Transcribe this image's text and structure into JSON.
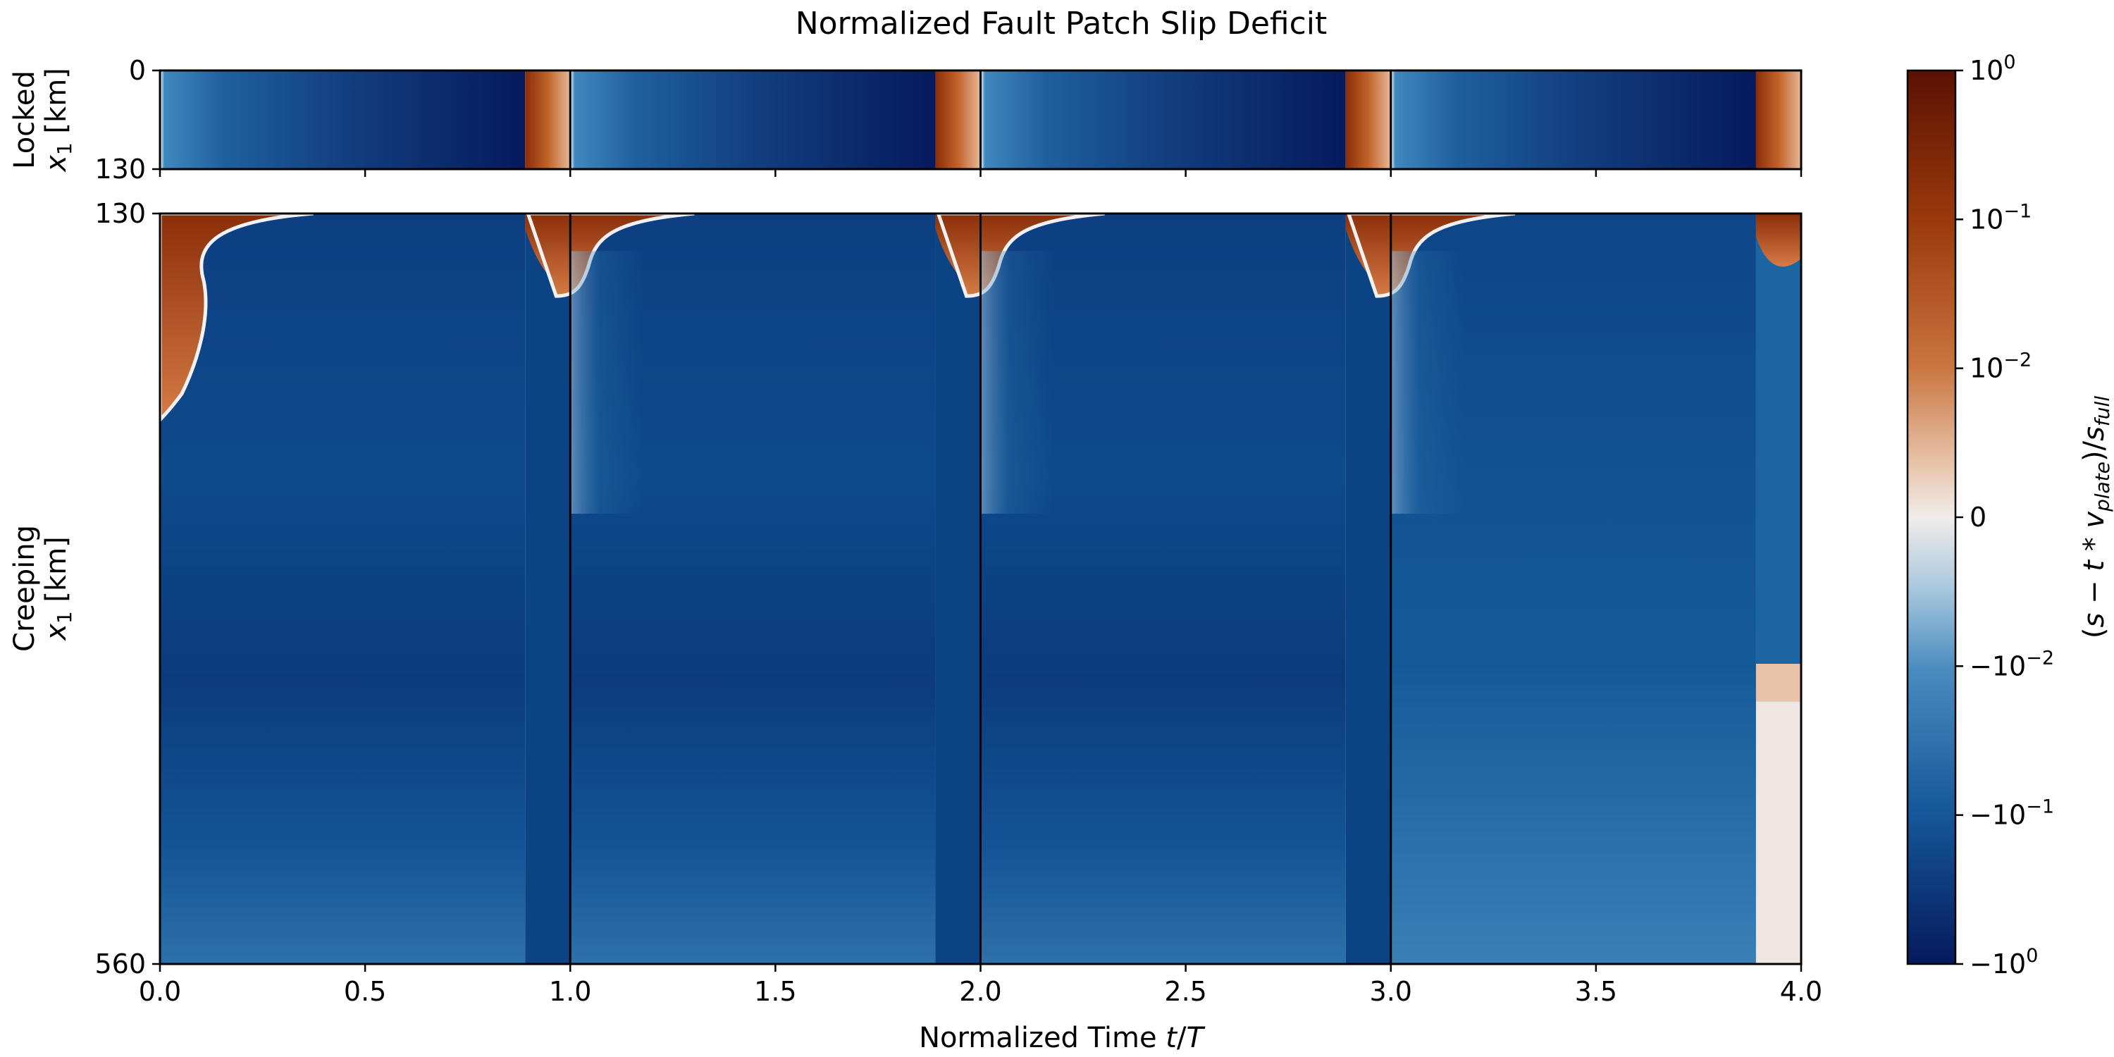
{
  "chart_data": {
    "type": "heatmap",
    "title": "Normalized Fault Patch Slip Deficit",
    "xlabel": "Normalized Time t/T",
    "xlim": [
      0.0,
      4.0
    ],
    "x_ticks": [
      "0.0",
      "0.5",
      "1.0",
      "1.5",
      "2.0",
      "2.5",
      "3.0",
      "3.5",
      "4.0"
    ],
    "x_tick_values": [
      0.0,
      0.5,
      1.0,
      1.5,
      2.0,
      2.5,
      3.0,
      3.5,
      4.0
    ],
    "cycle_boundaries": [
      1.0,
      2.0,
      3.0
    ],
    "rupture_onsets": [
      0.89,
      1.89,
      2.89,
      3.89
    ],
    "panels": [
      {
        "name": "Locked",
        "ylabel_line1": "Locked",
        "ylabel_line2": "x1 [km]",
        "ylim": [
          0,
          130
        ],
        "y_ticks": [
          "0",
          "130"
        ]
      },
      {
        "name": "Creeping",
        "ylabel_line1": "Creeping",
        "ylabel_line2": "x1 [km]",
        "ylim": [
          130,
          560
        ],
        "y_ticks": [
          "130",
          "560"
        ]
      }
    ],
    "colorbar": {
      "label": "(s − t * v_plate)/s_full",
      "scale": "symlog",
      "colormap": "diverging blue-white-orange",
      "ticks": [
        "10^0",
        "10^-1",
        "10^-2",
        "0",
        "-10^-2",
        "-10^-1",
        "-10^0"
      ],
      "tick_values": [
        1,
        0.1,
        0.01,
        0,
        -0.01,
        -0.1,
        -1
      ],
      "colors": {
        "max": "#5b1103",
        "mid_pos": "#c0632a",
        "low_pos": "#e3b596",
        "zero": "#f1ecea",
        "low_neg": "#a9c8de",
        "mid_neg": "#2f77ae",
        "deep_neg": "#0a3f80",
        "min": "#061a5c"
      }
    }
  }
}
